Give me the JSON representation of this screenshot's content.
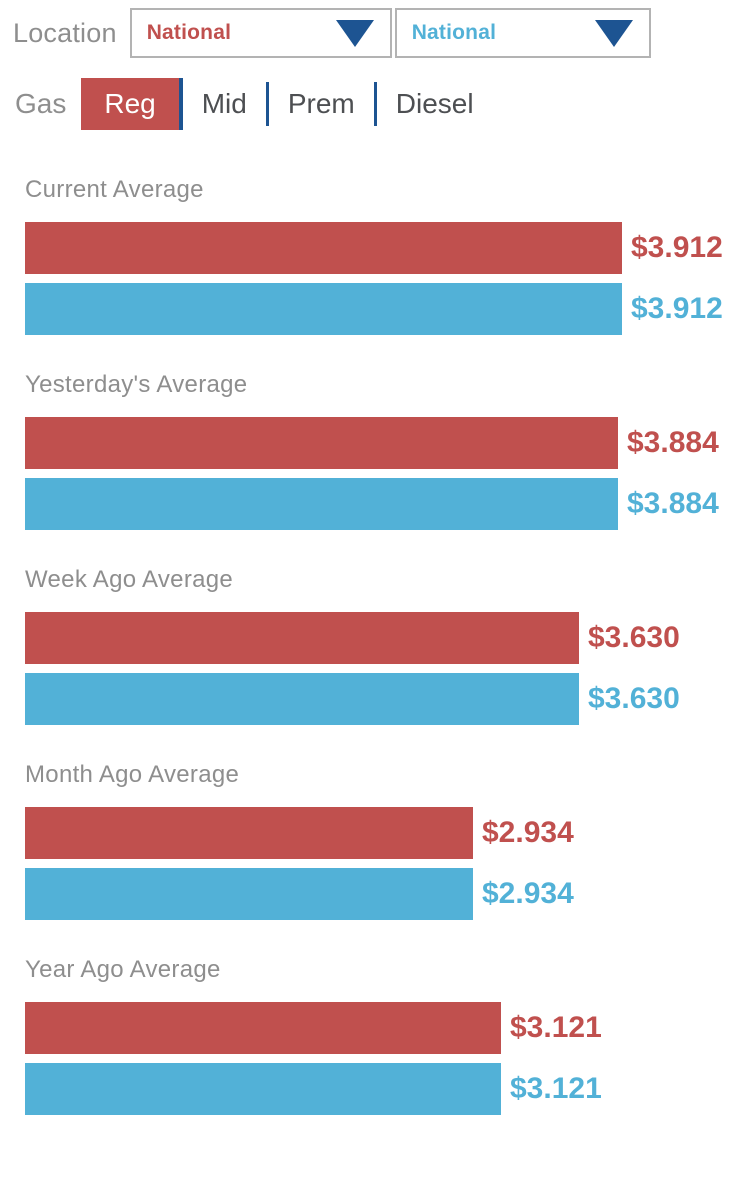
{
  "header": {
    "location_label": "Location",
    "primary_location": "National",
    "secondary_location": "National",
    "dropdown_icon": "triangle-down"
  },
  "fuel_selector": {
    "label": "Gas",
    "tabs": [
      {
        "label": "Reg",
        "selected": true
      },
      {
        "label": "Mid",
        "selected": false
      },
      {
        "label": "Prem",
        "selected": false
      },
      {
        "label": "Diesel",
        "selected": false
      }
    ]
  },
  "chart_data": {
    "type": "bar",
    "orientation": "horizontal",
    "value_unit": "USD per gallon",
    "xlim": [
      0,
      3.912
    ],
    "legend_position": "none",
    "grid": false,
    "series": [
      {
        "name": "primary-location",
        "color": "#c0504e"
      },
      {
        "name": "secondary-location",
        "color": "#52b1d7"
      }
    ],
    "sections": [
      {
        "title": "Current Average",
        "values": {
          "primary": 3.912,
          "secondary": 3.912
        },
        "labels": {
          "primary": "$3.912",
          "secondary": "$3.912"
        }
      },
      {
        "title": "Yesterday's Average",
        "values": {
          "primary": 3.884,
          "secondary": 3.884
        },
        "labels": {
          "primary": "$3.884",
          "secondary": "$3.884"
        }
      },
      {
        "title": "Week Ago Average",
        "values": {
          "primary": 3.63,
          "secondary": 3.63
        },
        "labels": {
          "primary": "$3.630",
          "secondary": "$3.630"
        }
      },
      {
        "title": "Month Ago Average",
        "values": {
          "primary": 2.934,
          "secondary": 2.934
        },
        "labels": {
          "primary": "$2.934",
          "secondary": "$2.934"
        }
      },
      {
        "title": "Year Ago Average",
        "values": {
          "primary": 3.121,
          "secondary": 3.121
        },
        "labels": {
          "primary": "$3.121",
          "secondary": "$3.121"
        }
      }
    ]
  },
  "colors": {
    "primary_red": "#c0504e",
    "secondary_blue": "#52b1d7",
    "accent_navy": "#1d5492",
    "label_gray": "#8e8e8e",
    "tab_text_gray": "#4d4f52",
    "dropdown_border_gray": "#b3b3b3"
  }
}
